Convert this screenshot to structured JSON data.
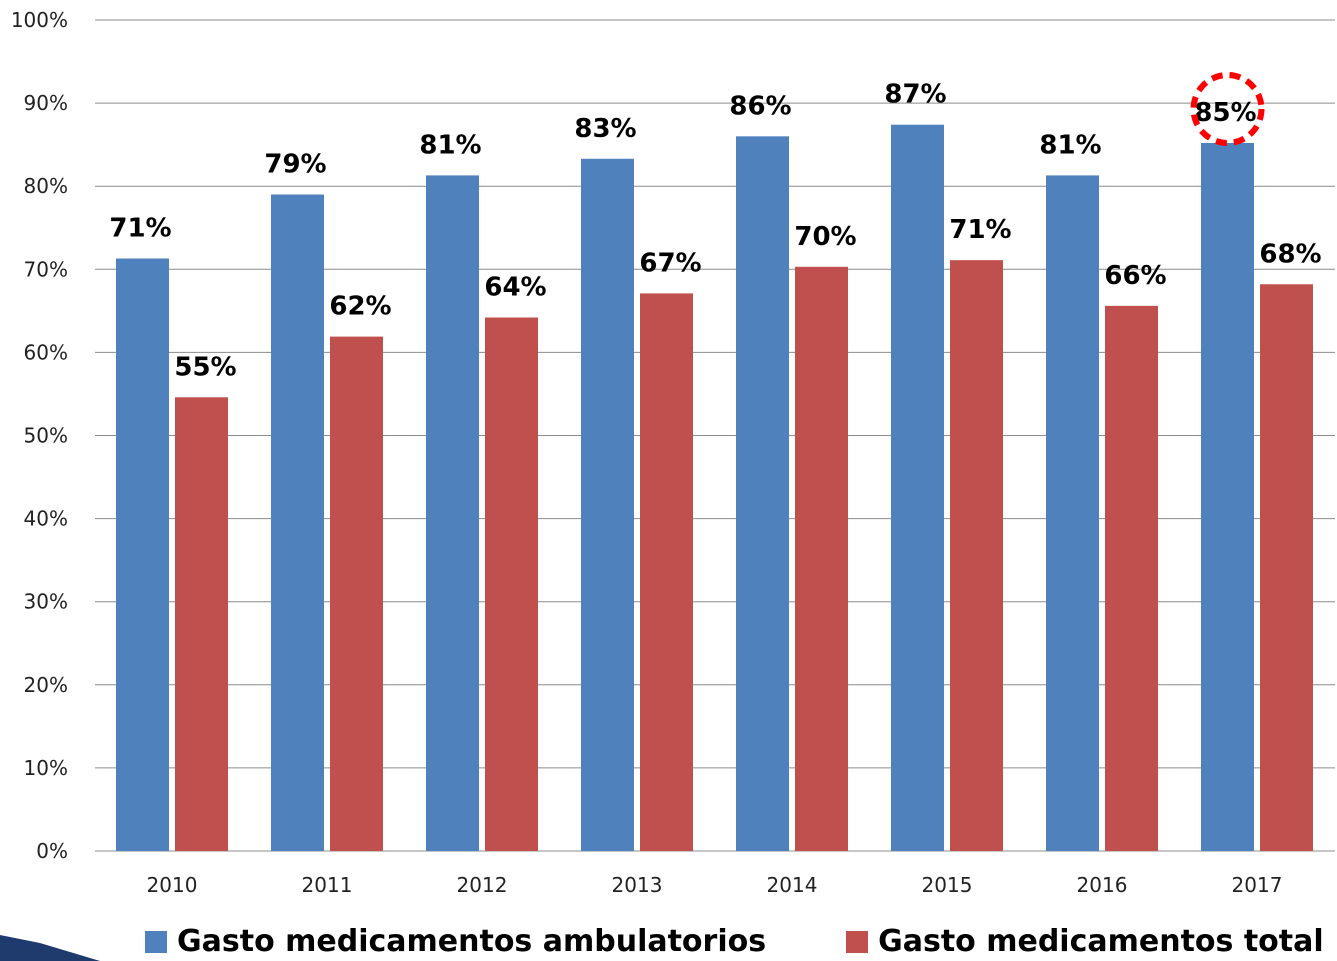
{
  "chart_data": {
    "type": "bar",
    "categories": [
      "2010",
      "2011",
      "2012",
      "2013",
      "2014",
      "2015",
      "2016",
      "2017"
    ],
    "series": [
      {
        "name": "Gasto medicamentos ambulatorios",
        "color": "#4f81bd",
        "values": [
          71.3,
          79.0,
          81.3,
          83.3,
          86.0,
          87.4,
          81.3,
          85.2
        ],
        "labels": [
          "71%",
          "79%",
          "81%",
          "83%",
          "86%",
          "87%",
          "81%",
          "85%"
        ]
      },
      {
        "name": "Gasto medicamentos total",
        "color": "#c0504d",
        "values": [
          54.6,
          61.9,
          64.2,
          67.1,
          70.3,
          71.1,
          65.6,
          68.2
        ],
        "labels": [
          "55%",
          "62%",
          "64%",
          "67%",
          "70%",
          "71%",
          "66%",
          "68%"
        ]
      }
    ],
    "ylim": [
      0,
      100
    ],
    "yticks": [
      "0%",
      "10%",
      "20%",
      "30%",
      "40%",
      "50%",
      "60%",
      "70%",
      "80%",
      "90%",
      "100%"
    ],
    "grid": true,
    "legend_position": "bottom",
    "highlight": {
      "category": "2017",
      "series": "Gasto medicamentos ambulatorios",
      "style": "red dashed circle",
      "color": "#ff0000"
    },
    "title": "",
    "xlabel": "",
    "ylabel": ""
  },
  "legend": {
    "items": [
      {
        "label": "Gasto medicamentos ambulatorios",
        "color": "#4f81bd"
      },
      {
        "label": "Gasto medicamentos total",
        "color": "#c0504d"
      }
    ]
  },
  "decoration": {
    "corner_icon": "arrow-shape-icon",
    "color": "#1f3a6e"
  }
}
